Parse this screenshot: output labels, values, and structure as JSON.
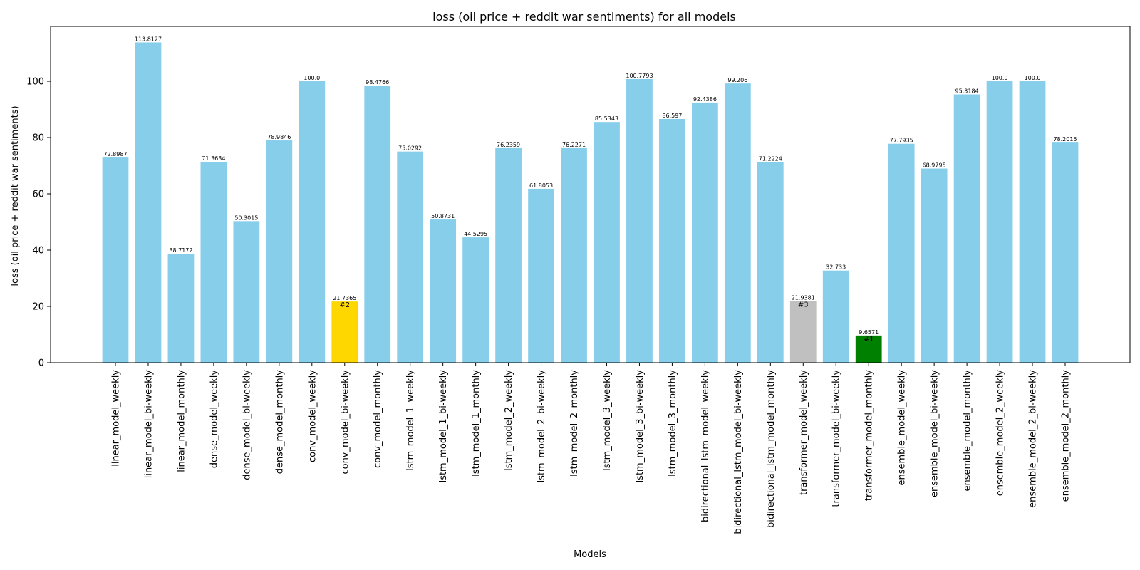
{
  "chart_data": {
    "type": "bar",
    "title": "loss (oil price + reddit war sentiments) for all models",
    "xlabel": "Models",
    "ylabel": "loss (oil price + reddit war sentiments)",
    "ylim": [
      0,
      119.5
    ],
    "yticks": [
      0,
      20,
      40,
      60,
      80,
      100
    ],
    "grid": false,
    "default_color": "#87CEEB",
    "bars": [
      {
        "category": "linear_model_weekly",
        "value": 72.8987,
        "label": "72.8987",
        "color": "#87CEEB"
      },
      {
        "category": "linear_model_bi-weekly",
        "value": 113.8127,
        "label": "113.8127",
        "color": "#87CEEB"
      },
      {
        "category": "linear_model_monthly",
        "value": 38.7172,
        "label": "38.7172",
        "color": "#87CEEB"
      },
      {
        "category": "dense_model_weekly",
        "value": 71.3634,
        "label": "71.3634",
        "color": "#87CEEB"
      },
      {
        "category": "dense_model_bi-weekly",
        "value": 50.3015,
        "label": "50.3015",
        "color": "#87CEEB"
      },
      {
        "category": "dense_model_monthly",
        "value": 78.9846,
        "label": "78.9846",
        "color": "#87CEEB"
      },
      {
        "category": "conv_model_weekly",
        "value": 100.0,
        "label": "100.0",
        "color": "#87CEEB"
      },
      {
        "category": "conv_model_bi-weekly",
        "value": 21.7365,
        "label": "21.7365",
        "color": "#FFD700",
        "rank": "#2"
      },
      {
        "category": "conv_model_monthly",
        "value": 98.4766,
        "label": "98.4766",
        "color": "#87CEEB"
      },
      {
        "category": "lstm_model_1_weekly",
        "value": 75.0292,
        "label": "75.0292",
        "color": "#87CEEB"
      },
      {
        "category": "lstm_model_1_bi-weekly",
        "value": 50.8731,
        "label": "50.8731",
        "color": "#87CEEB"
      },
      {
        "category": "lstm_model_1_monthly",
        "value": 44.5295,
        "label": "44.5295",
        "color": "#87CEEB"
      },
      {
        "category": "lstm_model_2_weekly",
        "value": 76.2359,
        "label": "76.2359",
        "color": "#87CEEB"
      },
      {
        "category": "lstm_model_2_bi-weekly",
        "value": 61.8053,
        "label": "61.8053",
        "color": "#87CEEB"
      },
      {
        "category": "lstm_model_2_monthly",
        "value": 76.2271,
        "label": "76.2271",
        "color": "#87CEEB"
      },
      {
        "category": "lstm_model_3_weekly",
        "value": 85.5343,
        "label": "85.5343",
        "color": "#87CEEB"
      },
      {
        "category": "lstm_model_3_bi-weekly",
        "value": 100.7793,
        "label": "100.7793",
        "color": "#87CEEB"
      },
      {
        "category": "lstm_model_3_monthly",
        "value": 86.597,
        "label": "86.597",
        "color": "#87CEEB"
      },
      {
        "category": "bidirectional_lstm_model_weekly",
        "value": 92.4386,
        "label": "92.4386",
        "color": "#87CEEB"
      },
      {
        "category": "bidirectional_lstm_model_bi-weekly",
        "value": 99.206,
        "label": "99.206",
        "color": "#87CEEB"
      },
      {
        "category": "bidirectional_lstm_model_monthly",
        "value": 71.2224,
        "label": "71.2224",
        "color": "#87CEEB"
      },
      {
        "category": "transformer_model_weekly",
        "value": 21.9381,
        "label": "21.9381",
        "color": "#C0C0C0",
        "rank": "#3"
      },
      {
        "category": "transformer_model_bi-weekly",
        "value": 32.733,
        "label": "32.733",
        "color": "#87CEEB"
      },
      {
        "category": "transformer_model_monthly",
        "value": 9.6571,
        "label": "9.6571",
        "color": "#008000",
        "rank": "#1"
      },
      {
        "category": "ensemble_model_weekly",
        "value": 77.7935,
        "label": "77.7935",
        "color": "#87CEEB"
      },
      {
        "category": "ensemble_model_bi-weekly",
        "value": 68.9795,
        "label": "68.9795",
        "color": "#87CEEB"
      },
      {
        "category": "ensemble_model_monthly",
        "value": 95.3184,
        "label": "95.3184",
        "color": "#87CEEB"
      },
      {
        "category": "ensemble_model_2_weekly",
        "value": 100.0,
        "label": "100.0",
        "color": "#87CEEB"
      },
      {
        "category": "ensemble_model_2_bi-weekly",
        "value": 100.0,
        "label": "100.0",
        "color": "#87CEEB"
      },
      {
        "category": "ensemble_model_2_monthly",
        "value": 78.2015,
        "label": "78.2015",
        "color": "#87CEEB"
      }
    ]
  }
}
